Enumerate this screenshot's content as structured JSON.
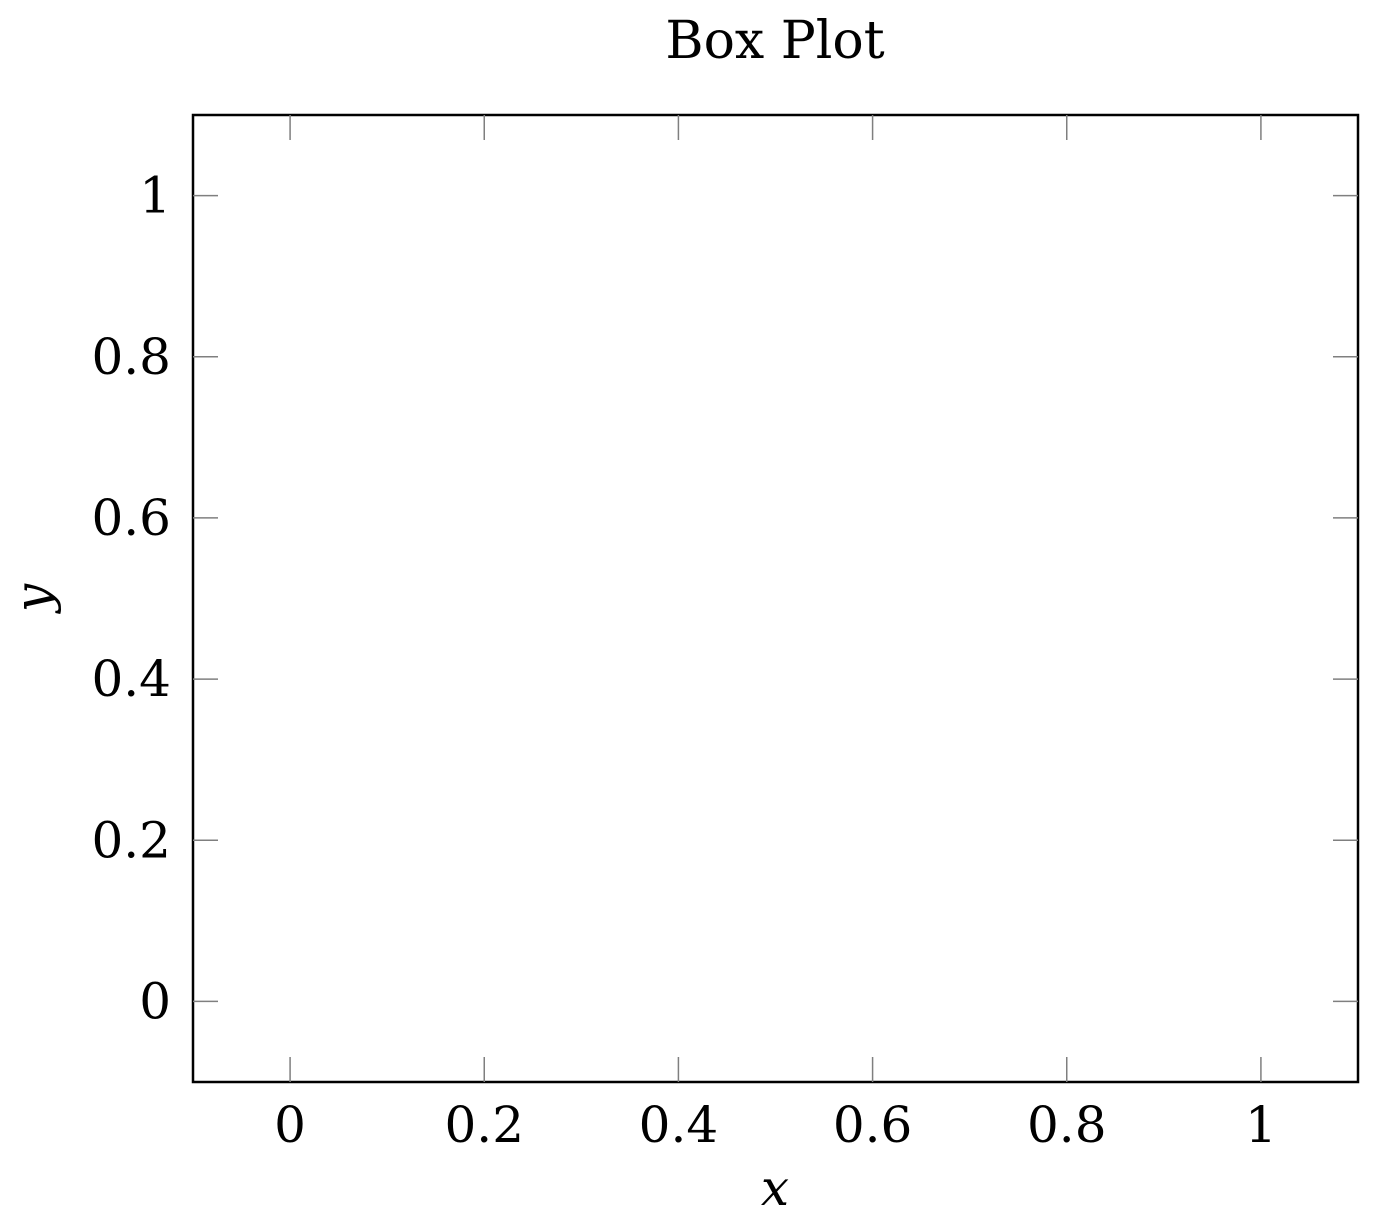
{
  "chart_data": {
    "type": "box",
    "title": "Box Plot",
    "xlabel": "x",
    "ylabel": "y",
    "xlim": [
      -0.1,
      1.1
    ],
    "ylim": [
      -0.1,
      1.1
    ],
    "x_ticks": [
      0,
      0.2,
      0.4,
      0.6,
      0.8,
      1
    ],
    "y_ticks": [
      0,
      0.2,
      0.4,
      0.6,
      0.8,
      1
    ],
    "x_tick_labels": [
      "0",
      "0.2",
      "0.4",
      "0.6",
      "0.8",
      "1"
    ],
    "y_tick_labels": [
      "0",
      "0.2",
      "0.4",
      "0.6",
      "0.8",
      "1"
    ],
    "series": [],
    "grid": false,
    "colors": {
      "frame": "#000000",
      "tick": "#7f7f7f",
      "background": "#ffffff"
    }
  }
}
